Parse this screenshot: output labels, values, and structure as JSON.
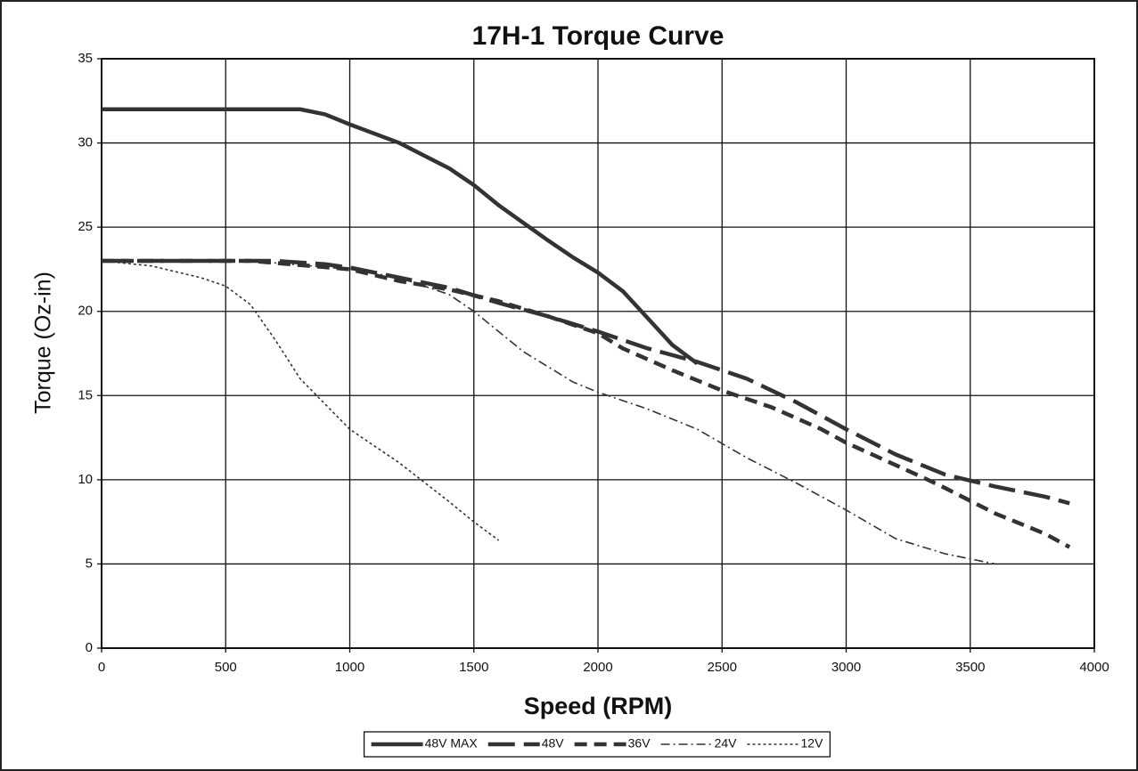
{
  "chart_data": {
    "type": "line",
    "title": "17H-1 Torque Curve",
    "x_label": "Speed (RPM)",
    "y_label": "Torque (Oz-in)",
    "xlim": [
      0,
      4000
    ],
    "xticks": [
      0,
      500,
      1000,
      1500,
      2000,
      2500,
      3000,
      3500,
      4000
    ],
    "ylim": [
      0,
      35
    ],
    "yticks": [
      0,
      5,
      10,
      15,
      20,
      25,
      30,
      35
    ],
    "grid": true,
    "legend": "bottom",
    "series": [
      {
        "name": "48V MAX",
        "color": "#333333",
        "line_style": "solid",
        "x": [
          0,
          800,
          900,
          1000,
          1200,
          1400,
          1500,
          1600,
          1800,
          1900,
          2000,
          2100,
          2200,
          2300,
          2400
        ],
        "values": [
          32,
          32,
          31.7,
          31.1,
          30,
          28.5,
          27.5,
          26.3,
          24.2,
          23.2,
          22.3,
          21.2,
          19.6,
          18,
          16.9
        ]
      },
      {
        "name": "48V",
        "color": "#333333",
        "line_style": "long-dash",
        "x": [
          0,
          600,
          700,
          900,
          1000,
          1200,
          1300,
          1400,
          1600,
          1800,
          2000,
          2200,
          2400,
          2600,
          2800,
          3000,
          3200,
          3400,
          3600,
          3800,
          3900
        ],
        "values": [
          23,
          23,
          23,
          22.8,
          22.6,
          22,
          21.7,
          21.4,
          20.5,
          19.7,
          18.8,
          17.8,
          17,
          16,
          14.6,
          13,
          11.5,
          10.3,
          9.6,
          9,
          8.6
        ]
      },
      {
        "name": "36V",
        "color": "#333333",
        "line_style": "dash",
        "x": [
          0,
          600,
          1000,
          1200,
          1400,
          1600,
          1800,
          2000,
          2100,
          2300,
          2500,
          2700,
          2900,
          3000,
          3300,
          3400,
          3600,
          3800,
          3900
        ],
        "values": [
          23,
          23,
          22.5,
          21.8,
          21.3,
          20.6,
          19.7,
          18.7,
          17.8,
          16.5,
          15.3,
          14.3,
          13,
          12.2,
          10.2,
          9.5,
          8,
          6.8,
          6
        ]
      },
      {
        "name": "24V",
        "color": "#333333",
        "line_style": "dash-dot",
        "x": [
          0,
          600,
          1000,
          1200,
          1300,
          1400,
          1500,
          1700,
          1900,
          2000,
          2200,
          2400,
          2600,
          2800,
          3000,
          3200,
          3400,
          3600
        ],
        "values": [
          23,
          23,
          22.5,
          22,
          21.5,
          21,
          20,
          17.6,
          15.8,
          15.2,
          14.2,
          13,
          11.3,
          9.8,
          8.2,
          6.5,
          5.6,
          5
        ]
      },
      {
        "name": "12V",
        "color": "#333333",
        "line_style": "dot",
        "x": [
          0,
          200,
          400,
          500,
          600,
          700,
          800,
          900,
          1000,
          1200,
          1400,
          1500,
          1600
        ],
        "values": [
          23,
          22.7,
          22,
          21.5,
          20.4,
          18.3,
          16,
          14.5,
          13,
          11,
          8.7,
          7.5,
          6.4
        ]
      }
    ]
  }
}
